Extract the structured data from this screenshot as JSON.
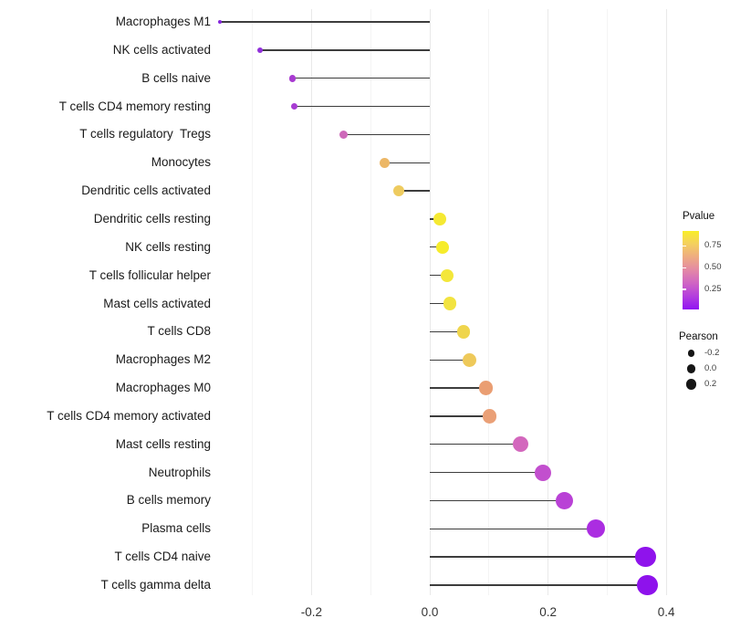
{
  "chart_data": {
    "type": "lollipop",
    "orientation": "horizontal",
    "title": "",
    "xlabel": "",
    "ylabel": "",
    "xlim": [
      -0.39,
      0.41
    ],
    "x_major_ticks": [
      -0.2,
      0.0,
      0.2,
      0.4
    ],
    "x_major_tick_labels": [
      "-0.2",
      "0.0",
      "0.2",
      "0.4"
    ],
    "x_minor_ticks": [
      -0.3,
      -0.1,
      0.1,
      0.3
    ],
    "grid": "vertical major and minor gridlines only, light gray, white background",
    "background_color": "#ffffff",
    "stem_color": "#3d3d3d",
    "size_encoding": "Pearson value (larger = higher Pearson)",
    "color_encoding": "Pvalue (yellow = high, purple = low)",
    "rows": [
      {
        "label": "Macrophages M1",
        "pearson": -0.355,
        "color": "#8526dd"
      },
      {
        "label": "NK cells activated",
        "pearson": -0.287,
        "color": "#9130da"
      },
      {
        "label": "B cells naive",
        "pearson": -0.232,
        "color": "#a83bd1"
      },
      {
        "label": "T cells CD4 memory resting",
        "pearson": -0.229,
        "color": "#a73cd2"
      },
      {
        "label": "T cells regulatory  Tregs",
        "pearson": -0.146,
        "color": "#cd68b9"
      },
      {
        "label": "Monocytes",
        "pearson": -0.076,
        "color": "#ecb766"
      },
      {
        "label": "Dendritic cells activated",
        "pearson": -0.052,
        "color": "#eecb5f"
      },
      {
        "label": "Dendritic cells resting",
        "pearson": 0.017,
        "color": "#f5e932"
      },
      {
        "label": "NK cells resting",
        "pearson": 0.022,
        "color": "#f6ec2b"
      },
      {
        "label": "T cells follicular helper",
        "pearson": 0.029,
        "color": "#f3e73a"
      },
      {
        "label": "Mast cells activated",
        "pearson": 0.034,
        "color": "#f2e340"
      },
      {
        "label": "T cells CD8",
        "pearson": 0.057,
        "color": "#efd54d"
      },
      {
        "label": "Macrophages M2",
        "pearson": 0.067,
        "color": "#eec95a"
      },
      {
        "label": "Macrophages M0",
        "pearson": 0.095,
        "color": "#ea9e72"
      },
      {
        "label": "T cells CD4 memory activated",
        "pearson": 0.101,
        "color": "#eaa077"
      },
      {
        "label": "Mast cells resting",
        "pearson": 0.153,
        "color": "#d367bd"
      },
      {
        "label": "Neutrophils",
        "pearson": 0.192,
        "color": "#c24fce"
      },
      {
        "label": "B cells memory",
        "pearson": 0.228,
        "color": "#b941d6"
      },
      {
        "label": "Plasma cells",
        "pearson": 0.281,
        "color": "#ab2de1"
      },
      {
        "label": "T cells CD4 naive",
        "pearson": 0.365,
        "color": "#8f13ec"
      },
      {
        "label": "T cells gamma delta",
        "pearson": 0.368,
        "color": "#8e12ec"
      }
    ],
    "legend_pvalue": {
      "title": "Pvalue",
      "ticks": [
        {
          "label": "0.75",
          "value": 0.75
        },
        {
          "label": "0.50",
          "value": 0.5
        },
        {
          "label": "0.25",
          "value": 0.25
        }
      ],
      "bar_value_range_top_to_bottom": [
        0.92,
        0.02
      ],
      "gradient_top_to_bottom": [
        "#f9ee27",
        "#f4cf60",
        "#eeab82",
        "#e388a6",
        "#cf64c4",
        "#b33ede",
        "#9013f2"
      ]
    },
    "legend_pearson": {
      "title": "Pearson",
      "dot_color": "#161616",
      "items": [
        {
          "label": "-0.2",
          "radius_px": 3.6
        },
        {
          "label": "0.0",
          "radius_px": 4.6
        },
        {
          "label": "0.2",
          "radius_px": 5.6
        }
      ]
    }
  }
}
